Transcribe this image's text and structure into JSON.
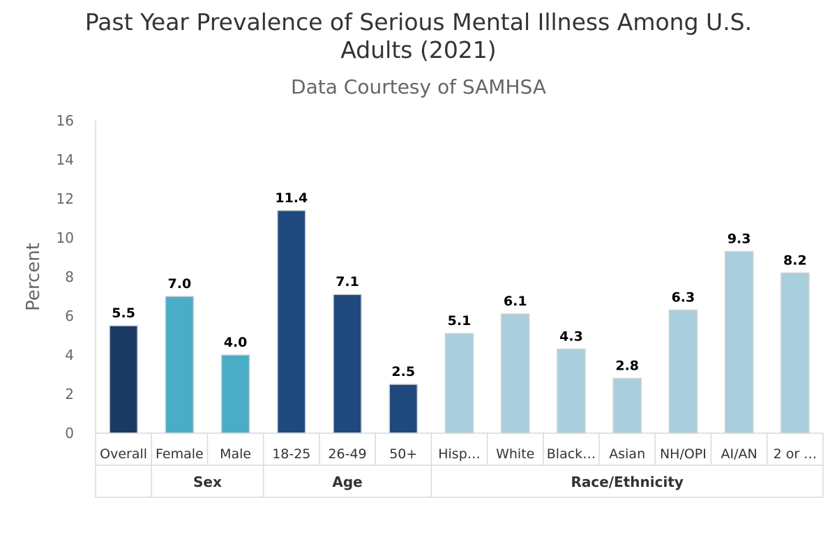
{
  "chart_data": {
    "type": "bar",
    "title_lines": [
      "Past Year Prevalence of Serious Mental Illness Among U.S.",
      "Adults (2021)"
    ],
    "subtitle": "Data Courtesy of SAMHSA",
    "ylabel": "Percent",
    "xlabel": "",
    "ylim": [
      0,
      16
    ],
    "yticks": [
      "0",
      "2",
      "4",
      "6",
      "8",
      "10",
      "12",
      "14",
      "16"
    ],
    "grid": false,
    "legend": "none",
    "categories": [
      "Overall",
      "Female",
      "Male",
      "18-25",
      "26-49",
      "50+",
      "Hisp…",
      "White",
      "Black…",
      "Asian",
      "NH/OPI",
      "AI/AN",
      "2 or …"
    ],
    "values": [
      5.5,
      7.0,
      4.0,
      11.4,
      7.1,
      2.5,
      5.1,
      6.1,
      4.3,
      2.8,
      6.3,
      9.3,
      8.2
    ],
    "data_labels": [
      "5.5",
      "7.0",
      "4.0",
      "11.4",
      "7.1",
      "2.5",
      "5.1",
      "6.1",
      "4.3",
      "2.8",
      "6.3",
      "9.3",
      "8.2"
    ],
    "bar_colors": [
      "#1b3a63",
      "#4bacc6",
      "#4bacc6",
      "#1f497d",
      "#1f497d",
      "#1f497d",
      "#a9cfdc",
      "#a9cfdc",
      "#a9cfdc",
      "#a9cfdc",
      "#a9cfdc",
      "#a9cfdc",
      "#a9cfdc"
    ],
    "groups": [
      {
        "label": "",
        "start": 0,
        "count": 1
      },
      {
        "label": "Sex",
        "start": 1,
        "count": 2
      },
      {
        "label": "Age",
        "start": 3,
        "count": 3
      },
      {
        "label": "Race/Ethnicity",
        "start": 6,
        "count": 7
      }
    ]
  }
}
